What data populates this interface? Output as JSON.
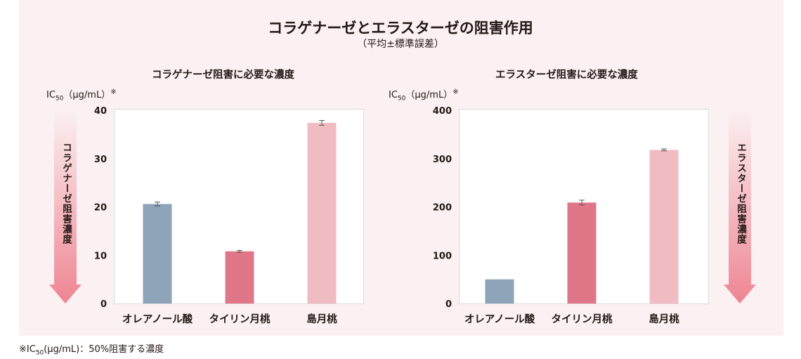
{
  "title": "コラゲナーゼとエラスターゼの阻害作用",
  "subtitle": "（平均±標準誤差）",
  "footnote": "※IC₅₀(μg/mL)：50%阻害する濃度",
  "colors": {
    "panel_bg": "#fbf1f2",
    "bar_blue": "#8ea4b8",
    "bar_red": "#e07788",
    "bar_pink": "#f0bcc2",
    "arrow": "#f08a96"
  },
  "chart_data": [
    {
      "type": "bar",
      "title": "コラゲナーゼ阻害に必要な濃度",
      "ylabel": "IC₅₀（μg/mL）※",
      "arrow_label": "コラゲナーゼ阻害濃度",
      "categories": [
        "オレアノール酸",
        "タイリン月桃",
        "島月桃"
      ],
      "values": [
        20.6,
        10.8,
        37.4
      ],
      "errors": [
        0.4,
        0.2,
        0.5
      ],
      "bar_colors": [
        "#8ea4b8",
        "#e07788",
        "#f0bcc2"
      ],
      "ylim": [
        0,
        40
      ],
      "yticks": [
        0,
        10,
        20,
        30,
        40
      ],
      "grid": false
    },
    {
      "type": "bar",
      "title": "エラスターゼ阻害に必要な濃度",
      "ylabel": "IC₅₀（μg/mL）※",
      "arrow_label": "エラスターゼ阻害濃度",
      "categories": [
        "オレアノール酸",
        "タイリン月桃",
        "島月桃"
      ],
      "values": [
        50,
        209,
        318
      ],
      "errors": [
        0,
        5,
        2
      ],
      "bar_colors": [
        "#8ea4b8",
        "#e07788",
        "#f0bcc2"
      ],
      "ylim": [
        0,
        400
      ],
      "yticks": [
        0,
        100,
        200,
        300,
        400
      ],
      "grid": false
    }
  ]
}
